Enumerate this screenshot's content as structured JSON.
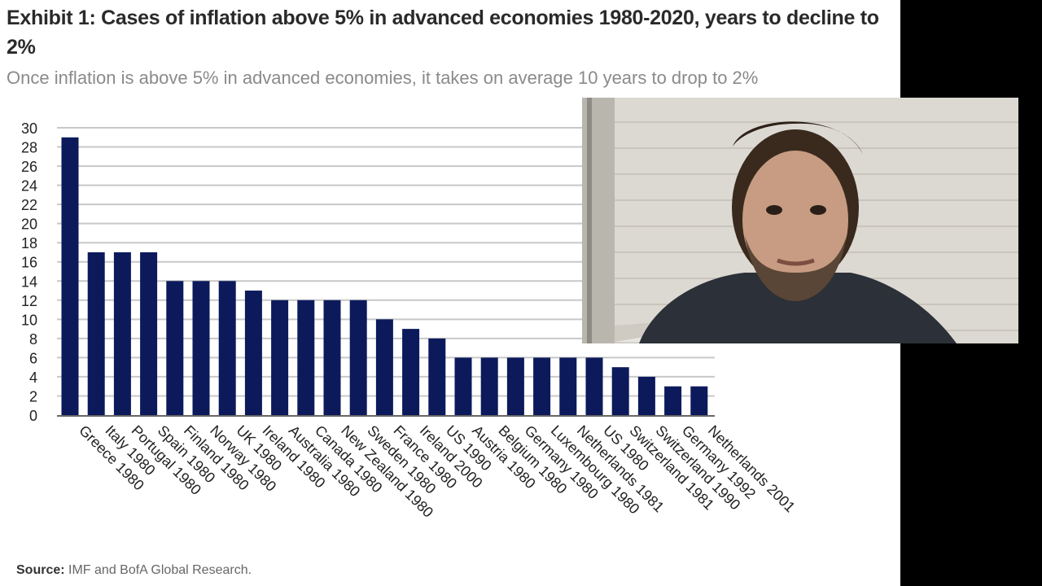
{
  "header": {
    "title": "Exhibit 1: Cases of inflation above 5% in advanced economies 1980-2020, years to decline to 2%",
    "subtitle": "Once inflation is above 5% in advanced economies, it takes on average 10 years to drop to 2%"
  },
  "footer": {
    "source_label": "Source:",
    "source_text": "IMF and BofA Global Research."
  },
  "colors": {
    "bar": "#0c1a5c",
    "grid": "#c8c8c8",
    "axis_text": "#222222"
  },
  "webcam": {
    "description": "presenter-video-overlay"
  },
  "chart_data": {
    "type": "bar",
    "title": "Exhibit 1: Cases of inflation above 5% in advanced economies 1980-2020, years to decline to 2%",
    "xlabel": "",
    "ylabel": "",
    "ylim": [
      0,
      30
    ],
    "yticks": [
      0,
      2,
      4,
      6,
      8,
      10,
      12,
      14,
      16,
      18,
      20,
      22,
      24,
      26,
      28,
      30
    ],
    "grid": true,
    "categories": [
      "Greece 1980",
      "Italy 1980",
      "Portugal 1980",
      "Spain 1980",
      "Finland 1980",
      "Norway 1980",
      "UK 1980",
      "Ireland 1980",
      "Australia 1980",
      "Canada 1980",
      "New Zealand 1980",
      "Sweden 1980",
      "France 1980",
      "Ireland 2000",
      "US 1990",
      "Austria 1980",
      "Belgium 1980",
      "Germany 1980",
      "Luxembourg 1980",
      "Netherlands 1981",
      "US 1980",
      "Switzerland 1981",
      "Switzerland 1990",
      "Germany 1992",
      "Netherlands 2001"
    ],
    "values": [
      29,
      17,
      17,
      17,
      14,
      14,
      14,
      13,
      12,
      12,
      12,
      12,
      10,
      9,
      8,
      6,
      6,
      6,
      6,
      6,
      6,
      5,
      4,
      3,
      3
    ]
  }
}
